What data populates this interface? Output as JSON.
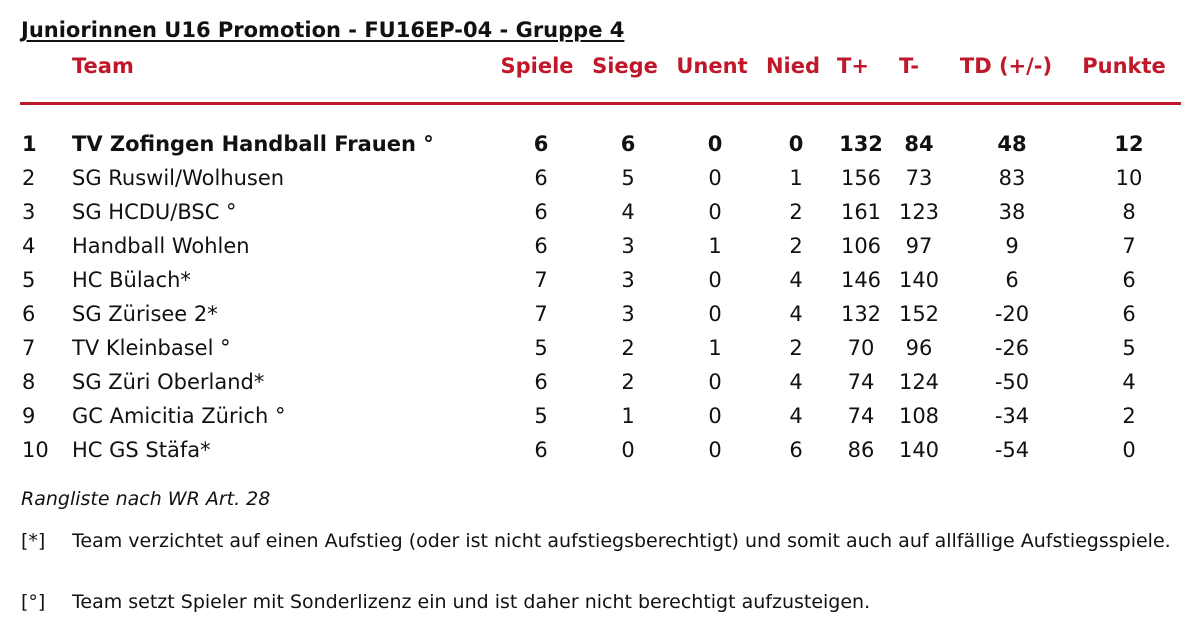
{
  "title": "Juniorinnen U16 Promotion - FU16EP-04 - Gruppe 4",
  "headers": {
    "team": "Team",
    "spiele": "Spiele",
    "siege": "Siege",
    "unent": "Unent",
    "nied": "Nied",
    "tplus": "T+",
    "tminus": "T-",
    "td": "TD (+/-)",
    "punkte": "Punkte"
  },
  "rows": [
    {
      "rank": "1",
      "team": "TV Zofingen Handball Frauen °",
      "spiele": "6",
      "siege": "6",
      "unent": "0",
      "nied": "0",
      "tplus": "132",
      "tminus": "84",
      "td": "48",
      "punkte": "12"
    },
    {
      "rank": "2",
      "team": "SG Ruswil/Wolhusen",
      "spiele": "6",
      "siege": "5",
      "unent": "0",
      "nied": "1",
      "tplus": "156",
      "tminus": "73",
      "td": "83",
      "punkte": "10"
    },
    {
      "rank": "3",
      "team": "SG HCDU/BSC °",
      "spiele": "6",
      "siege": "4",
      "unent": "0",
      "nied": "2",
      "tplus": "161",
      "tminus": "123",
      "td": "38",
      "punkte": "8"
    },
    {
      "rank": "4",
      "team": "Handball Wohlen",
      "spiele": "6",
      "siege": "3",
      "unent": "1",
      "nied": "2",
      "tplus": "106",
      "tminus": "97",
      "td": "9",
      "punkte": "7"
    },
    {
      "rank": "5",
      "team": "HC Bülach*",
      "spiele": "7",
      "siege": "3",
      "unent": "0",
      "nied": "4",
      "tplus": "146",
      "tminus": "140",
      "td": "6",
      "punkte": "6"
    },
    {
      "rank": "6",
      "team": "SG Zürisee 2*",
      "spiele": "7",
      "siege": "3",
      "unent": "0",
      "nied": "4",
      "tplus": "132",
      "tminus": "152",
      "td": "-20",
      "punkte": "6"
    },
    {
      "rank": "7",
      "team": "TV Kleinbasel °",
      "spiele": "5",
      "siege": "2",
      "unent": "1",
      "nied": "2",
      "tplus": "70",
      "tminus": "96",
      "td": "-26",
      "punkte": "5"
    },
    {
      "rank": "8",
      "team": "SG Züri Oberland*",
      "spiele": "6",
      "siege": "2",
      "unent": "0",
      "nied": "4",
      "tplus": "74",
      "tminus": "124",
      "td": "-50",
      "punkte": "4"
    },
    {
      "rank": "9",
      "team": "GC Amicitia Zürich °",
      "spiele": "5",
      "siege": "1",
      "unent": "0",
      "nied": "4",
      "tplus": "74",
      "tminus": "108",
      "td": "-34",
      "punkte": "2"
    },
    {
      "rank": "10",
      "team": "HC GS Stäfa*",
      "spiele": "6",
      "siege": "0",
      "unent": "0",
      "nied": "6",
      "tplus": "86",
      "tminus": "140",
      "td": "-54",
      "punkte": "0"
    }
  ],
  "rangliste_note": "Rangliste nach WR Art. 28",
  "footnotes": [
    {
      "mark": "[*]",
      "text": "Team verzichtet auf einen Aufstieg (oder ist nicht aufstiegsberechtigt) und somit auch auf allfällige Aufstiegsspiele."
    },
    {
      "mark": "[°]",
      "text": "Team setzt Spieler mit Sonderlizenz ein und ist daher nicht berechtigt aufzusteigen."
    }
  ],
  "colors": {
    "accent": "#c0182b",
    "text": "#111111"
  }
}
